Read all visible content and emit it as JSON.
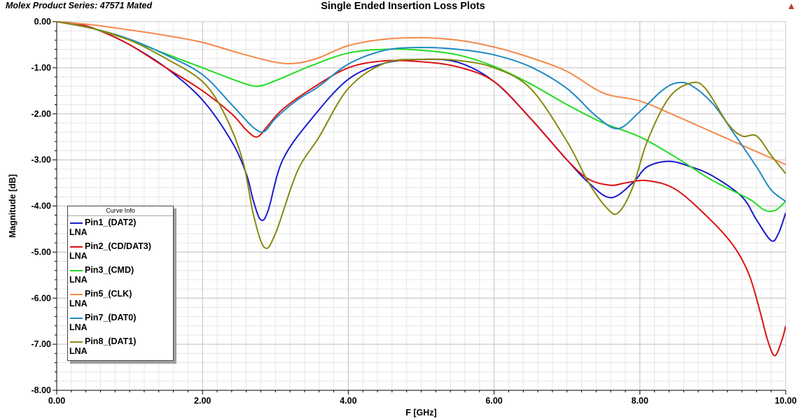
{
  "chart_data": {
    "type": "line",
    "title": "Single Ended Insertion Loss Plots",
    "subtitle": "Molex Product Series: 47571 Mated",
    "xlabel": "F [GHz]",
    "ylabel": "Magnitude [dB]",
    "xlim": [
      0,
      10
    ],
    "ylim": [
      -8,
      0
    ],
    "xticks": [
      0,
      2,
      4,
      6,
      8,
      10
    ],
    "xtick_labels": [
      "0.00",
      "2.00",
      "4.00",
      "6.00",
      "8.00",
      "10.00"
    ],
    "yticks": [
      0,
      -1,
      -2,
      -3,
      -4,
      -5,
      -6,
      -7,
      -8
    ],
    "ytick_labels": [
      "0.00",
      "-1.00",
      "-2.00",
      "-3.00",
      "-4.00",
      "-5.00",
      "-6.00",
      "-7.00",
      "-8.00"
    ],
    "grid": true,
    "legend_title": "Curve Info",
    "legend_position": "bottom-left",
    "series": [
      {
        "name": "Pin1_(DAT2)",
        "sub": "LNA",
        "color": "#1a1acc",
        "x": [
          0,
          0.3,
          0.6,
          1,
          1.5,
          2,
          2.4,
          2.6,
          2.7,
          2.8,
          2.9,
          3.1,
          3.5,
          4,
          4.5,
          5,
          5.5,
          6,
          6.5,
          7,
          7.3,
          7.6,
          7.9,
          8.1,
          8.4,
          8.7,
          9,
          9.4,
          9.6,
          9.8,
          9.9,
          10
        ],
        "y": [
          0,
          -0.05,
          -0.2,
          -0.5,
          -1.0,
          -1.7,
          -2.6,
          -3.3,
          -3.9,
          -4.3,
          -4.1,
          -3.0,
          -2.1,
          -1.25,
          -0.9,
          -0.82,
          -0.88,
          -1.3,
          -2.1,
          -3.0,
          -3.5,
          -3.82,
          -3.5,
          -3.15,
          -3.03,
          -3.15,
          -3.35,
          -3.8,
          -4.3,
          -4.75,
          -4.6,
          -4.15
        ]
      },
      {
        "name": "Pin2_(CD/DAT3)",
        "sub": "LNA",
        "color": "#dd1111",
        "x": [
          0,
          0.3,
          0.6,
          1,
          1.5,
          2,
          2.4,
          2.6,
          2.75,
          2.9,
          3.1,
          3.5,
          4,
          4.5,
          5,
          5.5,
          6,
          6.5,
          7,
          7.3,
          7.6,
          7.8,
          8.1,
          8.5,
          9,
          9.3,
          9.5,
          9.65,
          9.75,
          9.85,
          9.95,
          10
        ],
        "y": [
          0,
          -0.05,
          -0.2,
          -0.5,
          -1.0,
          -1.5,
          -2.0,
          -2.35,
          -2.5,
          -2.25,
          -1.9,
          -1.45,
          -1.0,
          -0.85,
          -0.87,
          -0.98,
          -1.3,
          -2.1,
          -3.0,
          -3.42,
          -3.55,
          -3.5,
          -3.45,
          -3.65,
          -4.35,
          -4.9,
          -5.5,
          -6.3,
          -6.9,
          -7.25,
          -6.9,
          -6.6
        ]
      },
      {
        "name": "Pin3_(CMD)",
        "sub": "LNA",
        "color": "#22dd22",
        "x": [
          0,
          0.5,
          1,
          1.5,
          2,
          2.5,
          2.75,
          3,
          3.5,
          4,
          4.5,
          5,
          5.5,
          6,
          6.5,
          7,
          7.5,
          8,
          8.5,
          9,
          9.5,
          9.7,
          9.85,
          10
        ],
        "y": [
          0,
          -0.15,
          -0.4,
          -0.7,
          -1.0,
          -1.3,
          -1.4,
          -1.28,
          -0.95,
          -0.68,
          -0.6,
          -0.62,
          -0.72,
          -0.97,
          -1.35,
          -1.8,
          -2.2,
          -2.5,
          -2.95,
          -3.45,
          -3.85,
          -4.08,
          -4.1,
          -3.9
        ]
      },
      {
        "name": "Pin5_(CLK)",
        "sub": "LNA",
        "color": "#f4894a",
        "x": [
          0,
          0.5,
          1,
          1.5,
          2,
          2.5,
          3,
          3.3,
          3.6,
          4,
          4.5,
          5,
          5.5,
          6,
          6.5,
          7,
          7.5,
          8,
          8.5,
          9,
          9.5,
          10
        ],
        "y": [
          0,
          -0.07,
          -0.18,
          -0.3,
          -0.45,
          -0.68,
          -0.88,
          -0.9,
          -0.78,
          -0.52,
          -0.38,
          -0.35,
          -0.4,
          -0.55,
          -0.78,
          -1.08,
          -1.55,
          -1.72,
          -2.05,
          -2.4,
          -2.75,
          -3.1
        ]
      },
      {
        "name": "Pin7_(DAT0)",
        "sub": "LNA",
        "color": "#1f8ac4",
        "x": [
          0,
          0.5,
          1,
          1.5,
          2,
          2.4,
          2.7,
          2.85,
          3,
          3.3,
          3.6,
          4,
          4.5,
          5,
          5.5,
          6,
          6.5,
          7,
          7.4,
          7.7,
          8,
          8.3,
          8.5,
          8.7,
          9,
          9.3,
          9.6,
          9.8,
          10
        ],
        "y": [
          0,
          -0.15,
          -0.38,
          -0.72,
          -1.15,
          -1.8,
          -2.3,
          -2.38,
          -2.1,
          -1.7,
          -1.4,
          -0.92,
          -0.62,
          -0.56,
          -0.6,
          -0.72,
          -0.98,
          -1.45,
          -2.05,
          -2.32,
          -1.95,
          -1.5,
          -1.33,
          -1.38,
          -1.78,
          -2.45,
          -3.15,
          -3.65,
          -3.9
        ]
      },
      {
        "name": "Pin8_(DAT1)",
        "sub": "LNA",
        "color": "#888811",
        "x": [
          0,
          0.5,
          1,
          1.5,
          2,
          2.3,
          2.55,
          2.7,
          2.85,
          3,
          3.3,
          3.6,
          4,
          4.5,
          5,
          5.5,
          6,
          6.5,
          7,
          7.3,
          7.55,
          7.7,
          7.9,
          8.1,
          8.4,
          8.7,
          8.9,
          9.2,
          9.4,
          9.6,
          9.8,
          10
        ],
        "y": [
          0,
          -0.15,
          -0.4,
          -0.8,
          -1.3,
          -2.0,
          -3.0,
          -4.2,
          -4.9,
          -4.6,
          -3.25,
          -2.5,
          -1.45,
          -0.9,
          -0.82,
          -0.84,
          -1.0,
          -1.45,
          -2.6,
          -3.5,
          -4.05,
          -4.15,
          -3.6,
          -2.6,
          -1.65,
          -1.33,
          -1.45,
          -2.2,
          -2.48,
          -2.48,
          -2.9,
          -3.3
        ]
      }
    ]
  }
}
